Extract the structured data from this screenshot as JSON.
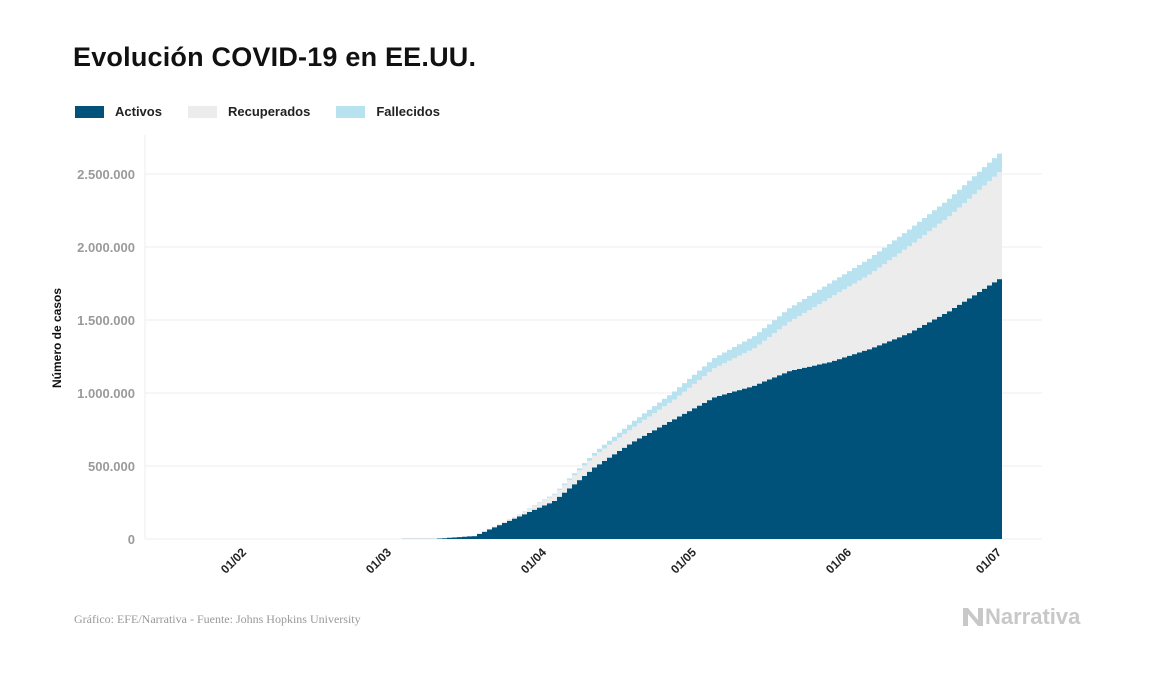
{
  "title": "Evolución COVID-19 en EE.UU.",
  "footer": "Gráfico: EFE/Narrativa - Fuente: Johns Hopkins University",
  "logo_text": "Narrativa",
  "chart_data": {
    "type": "area",
    "stacked": true,
    "step": true,
    "title": "Evolución COVID-19 en EE.UU.",
    "xlabel": "",
    "ylabel": "Número de casos",
    "ylim": [
      0,
      2640000
    ],
    "yticks": [
      0,
      500000,
      1000000,
      1500000,
      2000000,
      2500000
    ],
    "ytick_labels": [
      "0",
      "500.000",
      "1.000.000",
      "1.500.000",
      "2.000.000",
      "2.500.000"
    ],
    "xticks": [
      "2020-02-01",
      "2020-03-01",
      "2020-04-01",
      "2020-05-01",
      "2020-06-01",
      "2020-07-01"
    ],
    "xtick_labels": [
      "01/02",
      "01/03",
      "01/04",
      "01/05",
      "01/06",
      "01/07"
    ],
    "grid": true,
    "legend_position": "top-left",
    "x": [
      "2020-01-22",
      "2020-03-01",
      "2020-03-10",
      "2020-03-18",
      "2020-03-26",
      "2020-04-03",
      "2020-04-11",
      "2020-04-19",
      "2020-04-27",
      "2020-05-05",
      "2020-05-13",
      "2020-05-20",
      "2020-05-28",
      "2020-06-05",
      "2020-06-13",
      "2020-06-21",
      "2020-07-01"
    ],
    "series": [
      {
        "name": "Activos",
        "color": "#00527a",
        "values": [
          1,
          70,
          900,
          20000,
          140000,
          260000,
          490000,
          670000,
          820000,
          970000,
          1050000,
          1150000,
          1210000,
          1300000,
          1410000,
          1560000,
          1780000
        ]
      },
      {
        "name": "Recuperados",
        "color": "#ececec",
        "values": [
          0,
          7,
          8,
          100,
          10000,
          43000,
          80000,
          100000,
          135000,
          200000,
          256000,
          337000,
          439000,
          511000,
          595000,
          650000,
          732000
        ]
      },
      {
        "name": "Fallecidos",
        "color": "#b8e2ef",
        "values": [
          0,
          1,
          30,
          200,
          1000,
          7000,
          20000,
          40000,
          55000,
          70000,
          84000,
          93000,
          101000,
          109000,
          115000,
          120000,
          128000
        ]
      }
    ]
  }
}
